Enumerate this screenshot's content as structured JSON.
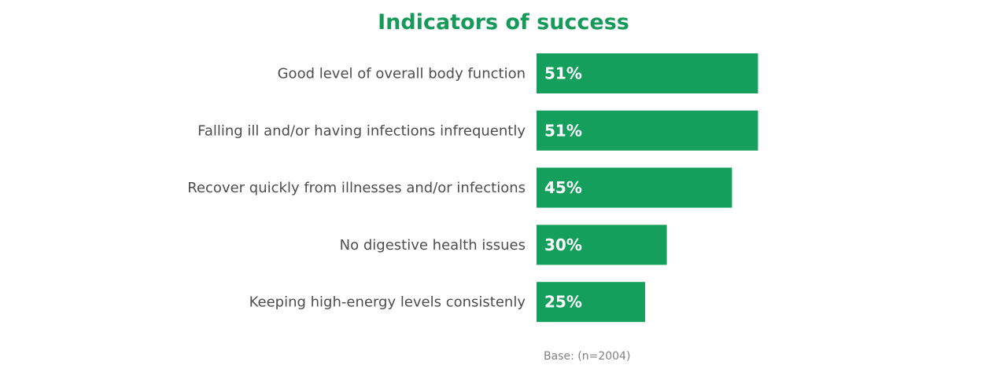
{
  "colors": {
    "title": "#169a5a",
    "bar": "#14a05c",
    "label": "#4d4d4d",
    "value_text": "#ffffff",
    "note": "#808080"
  },
  "chart_data": {
    "type": "bar",
    "orientation": "horizontal",
    "title": "Indicators of success",
    "categories": [
      "Good level of overall body function",
      "Falling ill and/or having infections infrequently",
      "Recover quickly from illnesses and/or infections",
      "No digestive health issues",
      "Keeping high-energy levels consistenly"
    ],
    "values": [
      51,
      51,
      45,
      30,
      25
    ],
    "value_labels": [
      "51%",
      "51%",
      "45%",
      "30%",
      "25%"
    ],
    "unit": "%",
    "xlim": [
      0,
      100
    ],
    "grid": false,
    "legend": "none",
    "note": "Base: (n=2004)"
  }
}
